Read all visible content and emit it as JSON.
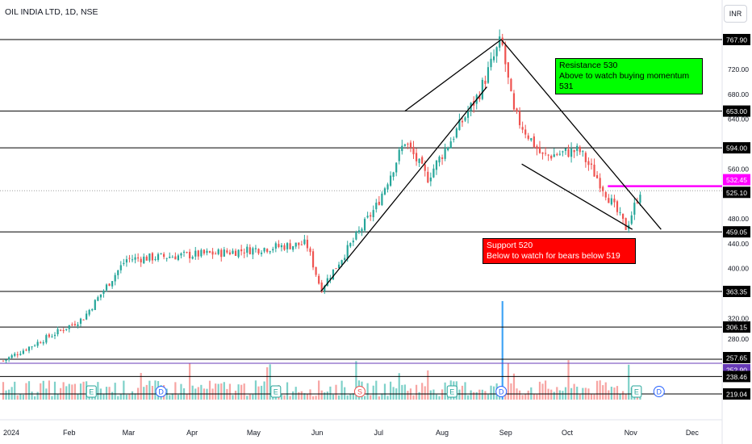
{
  "header": {
    "symbol_title": "OIL INDIA LTD, 1D, NSE",
    "currency_button": "INR"
  },
  "annotations": {
    "resistance": {
      "line1": "Resistance 530",
      "line2": "Above to watch buying momentum 531"
    },
    "support": {
      "line1": "Support 520",
      "line2": "Below to watch for bears below 519"
    }
  },
  "colors": {
    "up": "#26a69a",
    "down": "#ef5350",
    "up_vol": "#7ed1c9",
    "down_vol": "#f7a4a2",
    "blue_vol": "#42a5f5",
    "resistance_box": "#00ff00",
    "support_box": "#ff0000",
    "magenta": "#ff00ff",
    "purple": "#673ab7"
  },
  "chart_data": {
    "type": "candlestick",
    "title": "OIL INDIA LTD, 1D, NSE",
    "currency": "INR",
    "y_ticks": [
      280,
      320,
      400,
      440,
      480,
      560,
      640,
      680,
      720
    ],
    "x_ticks": [
      "2024",
      "Feb",
      "Mar",
      "Apr",
      "May",
      "Jun",
      "Jul",
      "Aug",
      "Sep",
      "Oct",
      "Nov",
      "Dec"
    ],
    "horizontal_levels": [
      767.9,
      653.0,
      594.0,
      459.05,
      363.35,
      306.15,
      257.65,
      238.46,
      219.04
    ],
    "price_tags": [
      {
        "value": "767.90",
        "style": "dark"
      },
      {
        "value": "653.00",
        "style": "dark"
      },
      {
        "value": "594.00",
        "style": "dark"
      },
      {
        "value": "532.45",
        "style": "magenta"
      },
      {
        "value": "525.10",
        "style": "dark"
      },
      {
        "value": "459.05",
        "style": "dark"
      },
      {
        "value": "363.35",
        "style": "dark"
      },
      {
        "value": "306.15",
        "style": "dark"
      },
      {
        "value": "257.65",
        "style": "dark"
      },
      {
        "value": "252.90",
        "style": "purple"
      },
      {
        "value": "238.46",
        "style": "dark"
      },
      {
        "value": "219.04",
        "style": "dark"
      }
    ],
    "magenta_level": 532.45,
    "close_level": 525.1,
    "key_points": [
      {
        "date": "2024-01-01",
        "price": 252
      },
      {
        "date": "2024-02-09",
        "price": 320
      },
      {
        "date": "2024-03-01",
        "price": 415
      },
      {
        "date": "2024-04-15",
        "price": 425
      },
      {
        "date": "2024-05-28",
        "price": 440
      },
      {
        "date": "2024-06-04",
        "price": 367
      },
      {
        "date": "2024-07-01",
        "price": 500
      },
      {
        "date": "2024-07-15",
        "price": 605
      },
      {
        "date": "2024-07-26",
        "price": 545
      },
      {
        "date": "2024-08-20",
        "price": 680
      },
      {
        "date": "2024-08-31",
        "price": 767.9
      },
      {
        "date": "2024-09-06",
        "price": 650
      },
      {
        "date": "2024-09-20",
        "price": 580
      },
      {
        "date": "2024-10-08",
        "price": 590
      },
      {
        "date": "2024-10-17",
        "price": 545
      },
      {
        "date": "2024-10-31",
        "price": 465
      },
      {
        "date": "2024-11-07",
        "price": 527
      }
    ],
    "volume_spike_date": "2024-09-01",
    "event_markers": [
      {
        "date": "2024-02-13",
        "label": "E"
      },
      {
        "date": "2024-03-18",
        "label": "D"
      },
      {
        "date": "2024-05-13",
        "label": "E"
      },
      {
        "date": "2024-06-23",
        "label": "S"
      },
      {
        "date": "2024-08-07",
        "label": "E"
      },
      {
        "date": "2024-08-31",
        "label": "D"
      },
      {
        "date": "2024-11-05",
        "label": "E"
      },
      {
        "date": "2024-11-16",
        "label": "D"
      }
    ],
    "trendlines": [
      {
        "from": {
          "date": "2024-06-04",
          "price": 363.35
        },
        "to": {
          "date": "2024-08-24",
          "price": 692
        }
      },
      {
        "from": {
          "date": "2024-07-15",
          "price": 653
        },
        "to": {
          "date": "2024-08-31",
          "price": 767.9
        }
      },
      {
        "from": {
          "date": "2024-08-31",
          "price": 767.9
        },
        "to": {
          "date": "2024-11-17",
          "price": 463
        }
      },
      {
        "from": {
          "date": "2024-09-10",
          "price": 568
        },
        "to": {
          "date": "2024-11-03",
          "price": 463
        }
      }
    ]
  }
}
